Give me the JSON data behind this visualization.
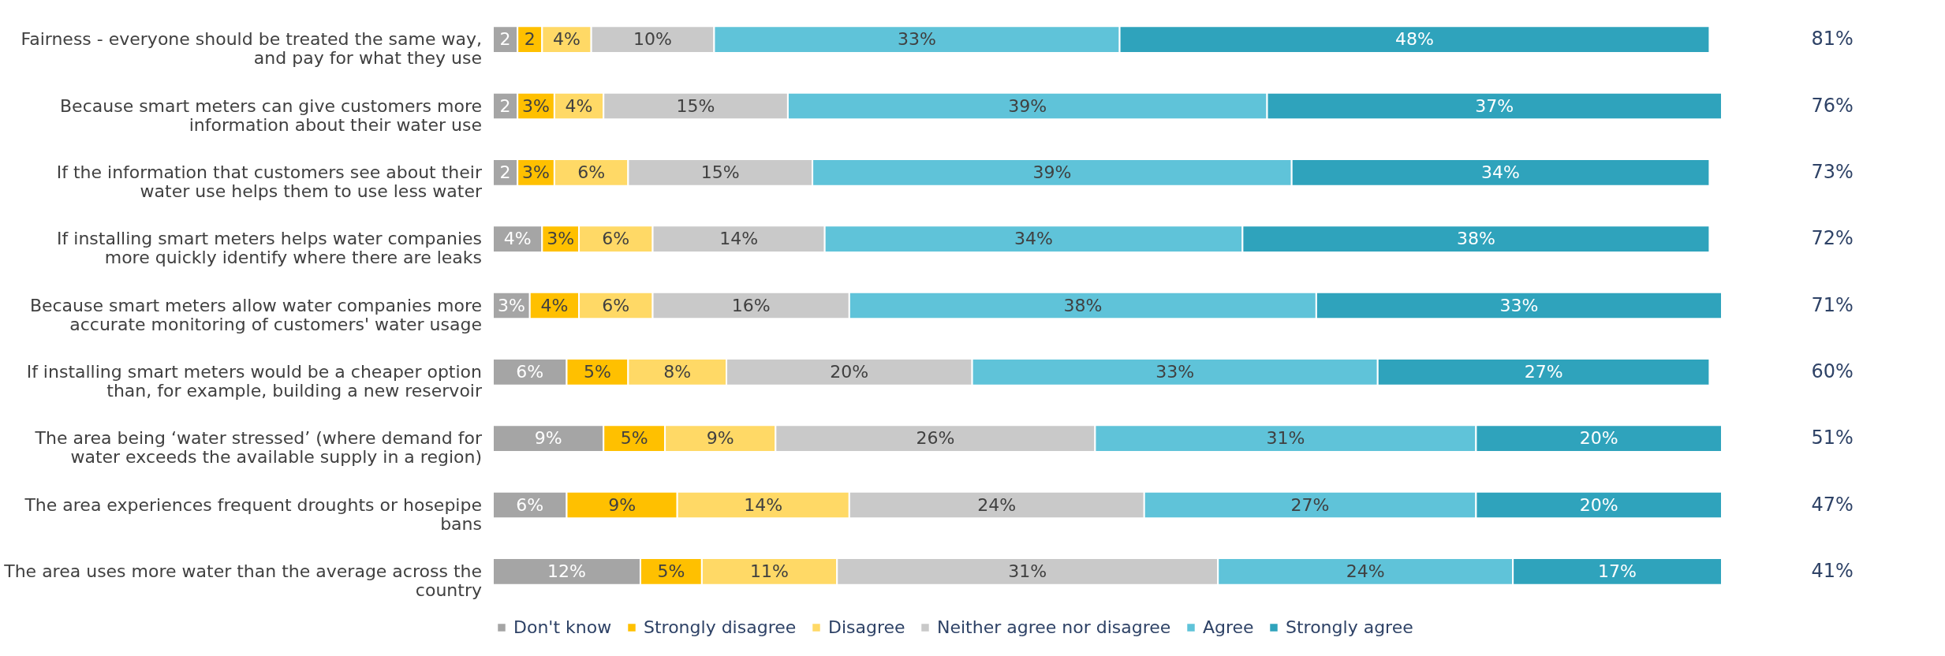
{
  "chart_data": {
    "type": "bar",
    "orientation": "horizontal",
    "stacked": true,
    "legend": "bottom",
    "categories": [
      "Fairness - everyone should be treated the same way, and pay for what they use",
      "Because smart meters can give customers more information about their water use",
      "If the information that customers see about their water use helps them to use less water",
      "If installing smart meters helps water companies more quickly identify where there are leaks",
      "Because smart meters allow water companies more accurate monitoring of customers' water usage",
      "If installing smart meters would be a cheaper option than, for example, building a new reservoir",
      "The area being ‘water stressed’ (where demand for water exceeds the available supply in a region)",
      "The area experiences frequent droughts or hosepipe bans",
      "The area uses more water than the average across the country"
    ],
    "series": [
      {
        "name": "Don't know",
        "color": "#a5a5a5",
        "values": [
          2,
          2,
          2,
          4,
          3,
          6,
          9,
          6,
          12
        ],
        "value_labels": [
          "2",
          "2",
          "2",
          "4%",
          "3%",
          "6%",
          "9%",
          "6%",
          "12%"
        ]
      },
      {
        "name": "Strongly disagree",
        "color": "#ffc000",
        "values": [
          2,
          3,
          3,
          3,
          4,
          5,
          5,
          9,
          5
        ],
        "value_labels": [
          "2",
          "3%",
          "3%",
          "3%",
          "4%",
          "5%",
          "5%",
          "9%",
          "5%"
        ]
      },
      {
        "name": "Disagree",
        "color": "#ffd966",
        "values": [
          4,
          4,
          6,
          6,
          6,
          8,
          9,
          14,
          11
        ],
        "value_labels": [
          "4%",
          "4%",
          "6%",
          "6%",
          "6%",
          "8%",
          "9%",
          "14%",
          "11%"
        ]
      },
      {
        "name": "Neither agree nor disagree",
        "color": "#c9c9c9",
        "values": [
          10,
          15,
          15,
          14,
          16,
          20,
          26,
          24,
          31
        ],
        "value_labels": [
          "10%",
          "15%",
          "15%",
          "14%",
          "16%",
          "20%",
          "26%",
          "24%",
          "31%"
        ]
      },
      {
        "name": "Agree",
        "color": "#5fc3d9",
        "values": [
          33,
          39,
          39,
          34,
          38,
          33,
          31,
          27,
          24
        ],
        "value_labels": [
          "33%",
          "39%",
          "39%",
          "34%",
          "38%",
          "33%",
          "31%",
          "27%",
          "24%"
        ]
      },
      {
        "name": "Strongly agree",
        "color": "#2fa3bc",
        "values": [
          48,
          37,
          34,
          38,
          33,
          27,
          20,
          20,
          17
        ],
        "value_labels": [
          "48%",
          "37%",
          "34%",
          "38%",
          "33%",
          "27%",
          "20%",
          "20%",
          "17%"
        ]
      }
    ],
    "annotations": [
      "81%",
      "76%",
      "73%",
      "72%",
      "71%",
      "60%",
      "51%",
      "47%",
      "41%"
    ]
  }
}
